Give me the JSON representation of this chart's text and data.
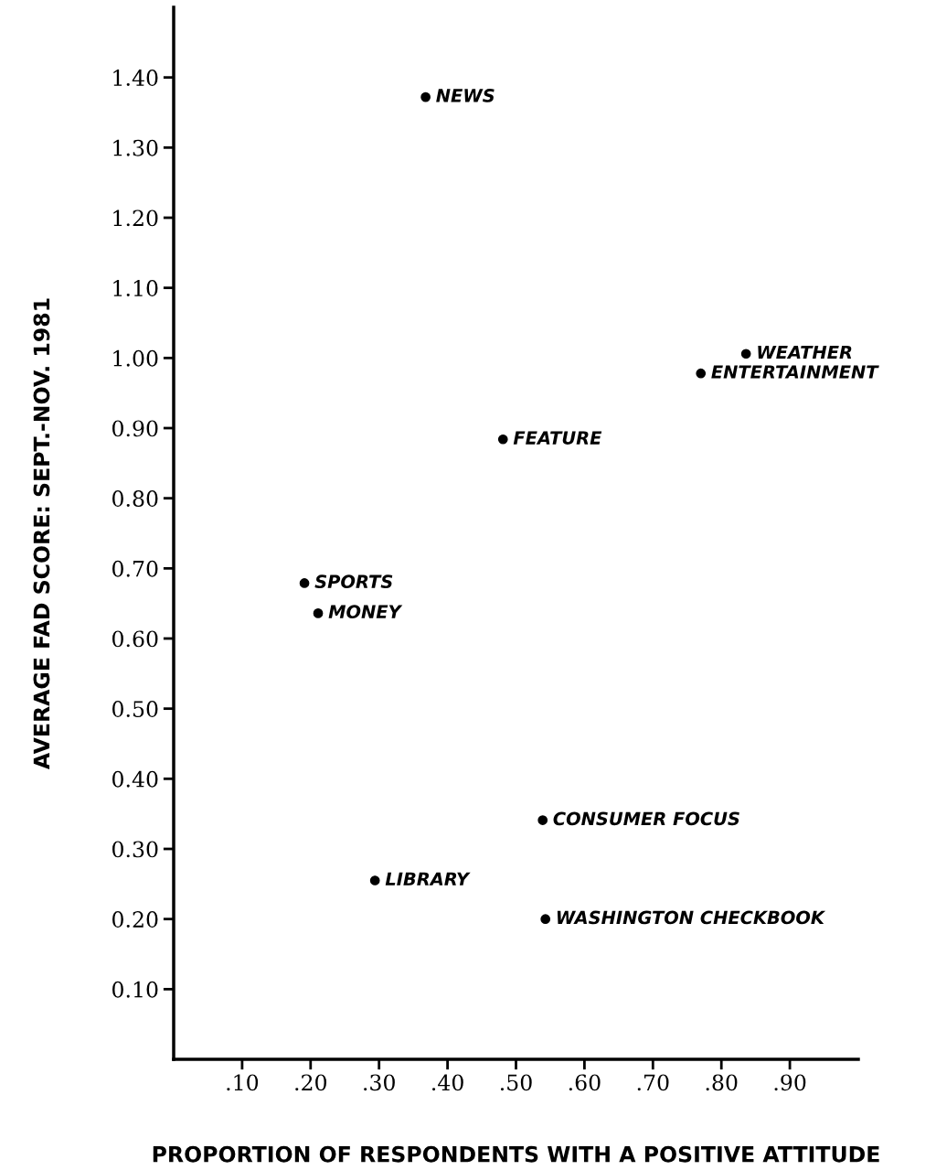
{
  "chart_data": {
    "type": "scatter",
    "xlabel": "PROPORTION OF RESPONDENTS WITH A POSITIVE ATTITUDE",
    "ylabel": "AVERAGE FAD SCORE: SEPT.-NOV. 1981",
    "x": [
      0.368,
      0.836,
      0.77,
      0.481,
      0.191,
      0.211,
      0.539,
      0.294,
      0.543
    ],
    "series": [
      {
        "color": "#000000",
        "values": [
          1.372,
          1.006,
          0.978,
          0.884,
          0.679,
          0.636,
          0.341,
          0.255,
          0.2
        ]
      }
    ],
    "marker": "circle",
    "grid": false,
    "legend": false,
    "xlim": [
      0,
      1.0
    ],
    "ylim": [
      0,
      1.5
    ],
    "xticks": [
      {
        "value": 0.1,
        "label": ".10"
      },
      {
        "value": 0.2,
        "label": ".20"
      },
      {
        "value": 0.3,
        "label": ".30"
      },
      {
        "value": 0.4,
        "label": ".40"
      },
      {
        "value": 0.5,
        "label": ".50"
      },
      {
        "value": 0.6,
        "label": ".60"
      },
      {
        "value": 0.7,
        "label": ".70"
      },
      {
        "value": 0.8,
        "label": ".80"
      },
      {
        "value": 0.9,
        "label": ".90"
      }
    ],
    "yticks": [
      {
        "value": 0.1,
        "label": "0.10"
      },
      {
        "value": 0.2,
        "label": "0.20"
      },
      {
        "value": 0.3,
        "label": "0.30"
      },
      {
        "value": 0.4,
        "label": "0.40"
      },
      {
        "value": 0.5,
        "label": "0.50"
      },
      {
        "value": 0.6,
        "label": "0.60"
      },
      {
        "value": 0.7,
        "label": "0.70"
      },
      {
        "value": 0.8,
        "label": "0.80"
      },
      {
        "value": 0.9,
        "label": "0.90"
      },
      {
        "value": 1.0,
        "label": "1.00"
      },
      {
        "value": 1.1,
        "label": "1.10"
      },
      {
        "value": 1.2,
        "label": "1.20"
      },
      {
        "value": 1.3,
        "label": "1.30"
      },
      {
        "value": 1.4,
        "label": "1.40"
      }
    ],
    "annotations": [
      {
        "text": "NEWS",
        "x": 0.368,
        "y": 1.372
      },
      {
        "text": "WEATHER",
        "x": 0.836,
        "y": 1.006
      },
      {
        "text": "ENTERTAINMENT",
        "x": 0.77,
        "y": 0.978
      },
      {
        "text": "FEATURE",
        "x": 0.481,
        "y": 0.884
      },
      {
        "text": "SPORTS",
        "x": 0.191,
        "y": 0.679
      },
      {
        "text": "MONEY",
        "x": 0.211,
        "y": 0.636
      },
      {
        "text": "CONSUMER FOCUS",
        "x": 0.539,
        "y": 0.341
      },
      {
        "text": "LIBRARY",
        "x": 0.294,
        "y": 0.255
      },
      {
        "text": "WASHINGTON CHECKBOOK",
        "x": 0.543,
        "y": 0.2
      }
    ]
  }
}
